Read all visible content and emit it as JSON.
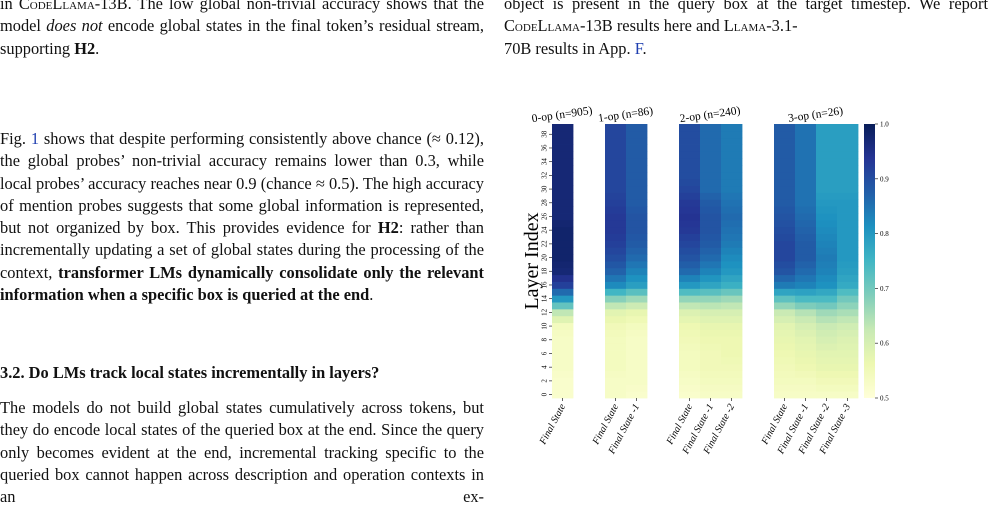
{
  "left_column": {
    "top_fragment": {
      "line1_pre": "in ",
      "line1_model": "CodeLlama-13B",
      "line1_post": ". The low global non-trivial accuracy shows",
      "line2_pre": "that the model ",
      "line2_emph": "does not",
      "line2_post": " encode global states in the final token’s",
      "line3_pre": "residual stream, supporting ",
      "line3_bold": "H2",
      "line3_post": "."
    },
    "body_paragraph": {
      "fig_label": "Fig.",
      "fig_ref": "1",
      "text1": " shows that despite performing consistently above chance (≈ 0.12), the global probes’ non-trivial accuracy remains lower than 0.3, while local probes’ accuracy reaches near 0.9 (chance ≈ 0.5). The high accuracy of mention probes suggests that some global information is represented, but not organized by box. This provides evidence for ",
      "h2": "H2",
      "text2": ": rather than incrementally updating a set of global states during the processing of the context, ",
      "bold_claim": "transformer LMs dynamically consolidate only the relevant information when a specific box is queried at the end",
      "end": "."
    },
    "section_heading": "3.2. Do LMs track local states incrementally in layers?",
    "bottom_paragraph": "The models do not build global states cumulatively across tokens, but they do encode local states of the queried box at the end. Since the query only becomes evident at the end, incremental tracking specific to the queried box cannot happen across description and operation contexts in an ex-"
  },
  "right_column": {
    "fragment": {
      "line1": "object is present in the query box at the target timestep. We",
      "line2_pre": "report ",
      "line2_model1": "CodeLlama-13B",
      "line2_mid": " results here and ",
      "line2_model2": "Llama-3.1-",
      "line3_pre": "70B results in App. ",
      "line3_ref": "F",
      "line3_post": "."
    }
  },
  "chart_data": {
    "type": "heatmap",
    "title": "",
    "ylabel": "Layer Index",
    "y_ticks": [
      0,
      2,
      4,
      6,
      8,
      10,
      12,
      14,
      16,
      18,
      20,
      22,
      24,
      26,
      28,
      30,
      32,
      34,
      36,
      38
    ],
    "n_layers": 40,
    "colorbar": {
      "min": 0.5,
      "max": 1.0,
      "ticks": [
        "0.5",
        "0.6",
        "0.7",
        "0.8",
        "0.9",
        "1.0"
      ],
      "colormap": "YlGnBu"
    },
    "panels": [
      {
        "title": "0-op (n=905)",
        "columns": [
          "Final State"
        ],
        "knots": [
          [
            0.52,
            0.52,
            0.53,
            0.53,
            0.53,
            0.54,
            0.63,
            0.8,
            0.92,
            0.97,
            0.98,
            0.98,
            0.98,
            0.97,
            0.97,
            0.97,
            0.97,
            0.97,
            0.97,
            0.97,
            0.97
          ]
        ]
      },
      {
        "title": "1-op (n=86)",
        "columns": [
          "Final State",
          "Final State -1"
        ],
        "knots": [
          [
            0.53,
            0.53,
            0.54,
            0.54,
            0.54,
            0.55,
            0.58,
            0.68,
            0.82,
            0.87,
            0.9,
            0.92,
            0.93,
            0.93,
            0.92,
            0.91,
            0.91,
            0.91,
            0.91,
            0.91,
            0.91
          ],
          [
            0.52,
            0.53,
            0.53,
            0.53,
            0.53,
            0.54,
            0.57,
            0.66,
            0.79,
            0.83,
            0.86,
            0.88,
            0.89,
            0.89,
            0.88,
            0.88,
            0.88,
            0.88,
            0.88,
            0.88,
            0.88
          ]
        ]
      },
      {
        "title": "2-op (n=240)",
        "columns": [
          "Final State",
          "Final State -1",
          "Final State -2"
        ],
        "knots": [
          [
            0.52,
            0.53,
            0.54,
            0.54,
            0.55,
            0.56,
            0.59,
            0.67,
            0.8,
            0.86,
            0.89,
            0.91,
            0.93,
            0.94,
            0.93,
            0.91,
            0.9,
            0.9,
            0.9,
            0.9,
            0.9
          ],
          [
            0.53,
            0.54,
            0.55,
            0.55,
            0.56,
            0.57,
            0.6,
            0.67,
            0.78,
            0.83,
            0.86,
            0.88,
            0.89,
            0.89,
            0.88,
            0.86,
            0.86,
            0.86,
            0.86,
            0.86,
            0.86
          ],
          [
            0.53,
            0.54,
            0.55,
            0.56,
            0.56,
            0.57,
            0.6,
            0.66,
            0.76,
            0.8,
            0.82,
            0.84,
            0.85,
            0.86,
            0.85,
            0.84,
            0.84,
            0.84,
            0.84,
            0.84,
            0.84
          ]
        ]
      },
      {
        "title": "3-op (n=26)",
        "columns": [
          "Final State",
          "Final State -1",
          "Final State -2",
          "Final State -3"
        ],
        "knots": [
          [
            0.53,
            0.54,
            0.55,
            0.56,
            0.57,
            0.58,
            0.62,
            0.72,
            0.84,
            0.89,
            0.91,
            0.91,
            0.9,
            0.89,
            0.88,
            0.88,
            0.88,
            0.88,
            0.88,
            0.88,
            0.88
          ],
          [
            0.53,
            0.54,
            0.56,
            0.57,
            0.58,
            0.6,
            0.64,
            0.74,
            0.83,
            0.86,
            0.88,
            0.88,
            0.87,
            0.86,
            0.85,
            0.85,
            0.85,
            0.85,
            0.85,
            0.85,
            0.85
          ],
          [
            0.53,
            0.55,
            0.57,
            0.58,
            0.6,
            0.62,
            0.66,
            0.74,
            0.81,
            0.83,
            0.84,
            0.83,
            0.82,
            0.81,
            0.8,
            0.79,
            0.79,
            0.79,
            0.79,
            0.79,
            0.79
          ],
          [
            0.53,
            0.55,
            0.57,
            0.58,
            0.59,
            0.61,
            0.65,
            0.7,
            0.77,
            0.79,
            0.8,
            0.8,
            0.8,
            0.8,
            0.8,
            0.79,
            0.79,
            0.79,
            0.79,
            0.79,
            0.79
          ]
        ]
      }
    ]
  }
}
